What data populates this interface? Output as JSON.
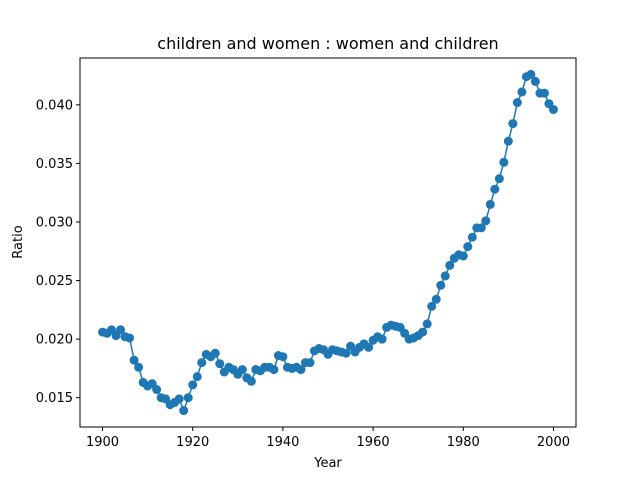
{
  "chart_data": {
    "type": "line",
    "title": "children and women : women and children",
    "xlabel": "Year",
    "ylabel": "Ratio",
    "xlim": [
      1895,
      2005
    ],
    "ylim": [
      0.0125,
      0.044
    ],
    "xticks": [
      1900,
      1920,
      1940,
      1960,
      1980,
      2000
    ],
    "xtick_labels": [
      "1900",
      "1920",
      "1940",
      "1960",
      "1980",
      "2000"
    ],
    "yticks": [
      0.015,
      0.02,
      0.025,
      0.03,
      0.035,
      0.04
    ],
    "ytick_labels": [
      "0.015",
      "0.020",
      "0.025",
      "0.030",
      "0.035",
      "0.040"
    ],
    "grid": false,
    "legend": false,
    "color": "#1f77b4",
    "marker": "circle",
    "series": [
      {
        "x": [
          1900,
          1901,
          1902,
          1903,
          1904,
          1905,
          1906,
          1907,
          1908,
          1909,
          1910,
          1911,
          1912,
          1913,
          1914,
          1915,
          1916,
          1917,
          1918,
          1919,
          1920,
          1921,
          1922,
          1923,
          1924,
          1925,
          1926,
          1927,
          1928,
          1929,
          1930,
          1931,
          1932,
          1933,
          1934,
          1935,
          1936,
          1937,
          1938,
          1939,
          1940,
          1941,
          1942,
          1943,
          1944,
          1945,
          1946,
          1947,
          1948,
          1949,
          1950,
          1951,
          1952,
          1953,
          1954,
          1955,
          1956,
          1957,
          1958,
          1959,
          1960,
          1961,
          1962,
          1963,
          1964,
          1965,
          1966,
          1967,
          1968,
          1969,
          1970,
          1971,
          1972,
          1973,
          1974,
          1975,
          1976,
          1977,
          1978,
          1979,
          1980,
          1981,
          1982,
          1983,
          1984,
          1985,
          1986,
          1987,
          1988,
          1989,
          1990,
          1991,
          1992,
          1993,
          1994,
          1995,
          1996,
          1997,
          1998,
          1999,
          2000
        ],
        "values": [
          0.0206,
          0.0205,
          0.0208,
          0.0203,
          0.0208,
          0.0202,
          0.0201,
          0.0182,
          0.0176,
          0.0163,
          0.016,
          0.0162,
          0.0157,
          0.015,
          0.0149,
          0.0144,
          0.0146,
          0.0149,
          0.0139,
          0.015,
          0.0161,
          0.0168,
          0.018,
          0.0187,
          0.0185,
          0.0188,
          0.0179,
          0.0172,
          0.0176,
          0.0174,
          0.017,
          0.0174,
          0.0167,
          0.0164,
          0.0174,
          0.0173,
          0.0176,
          0.0176,
          0.0174,
          0.0186,
          0.0185,
          0.0176,
          0.0175,
          0.0176,
          0.0174,
          0.018,
          0.018,
          0.019,
          0.0192,
          0.0191,
          0.0187,
          0.0191,
          0.019,
          0.0189,
          0.0188,
          0.0194,
          0.0189,
          0.0193,
          0.0196,
          0.0193,
          0.0199,
          0.0202,
          0.02,
          0.021,
          0.0212,
          0.0211,
          0.021,
          0.0205,
          0.02,
          0.0201,
          0.0203,
          0.0206,
          0.0213,
          0.0228,
          0.0234,
          0.0246,
          0.0254,
          0.0263,
          0.0269,
          0.0272,
          0.0271,
          0.0279,
          0.0287,
          0.0295,
          0.0295,
          0.0301,
          0.0315,
          0.0328,
          0.0337,
          0.0351,
          0.0369,
          0.0384,
          0.0402,
          0.0411,
          0.0424,
          0.0426,
          0.042,
          0.041,
          0.041,
          0.0401,
          0.0396
        ]
      }
    ]
  }
}
